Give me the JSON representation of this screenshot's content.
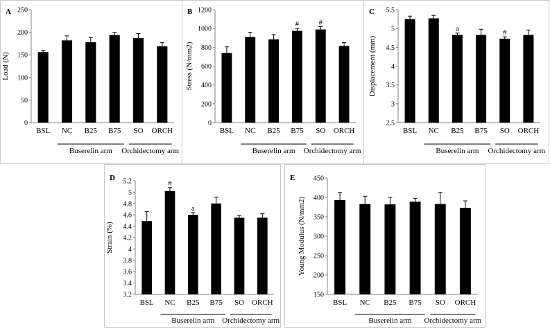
{
  "chart_data": [
    {
      "type": "bar",
      "panel_label": "A",
      "ylabel": "Load (N)",
      "ylim": [
        0,
        250
      ],
      "yticks": [
        "0",
        "50",
        "100",
        "150",
        "200",
        "250"
      ],
      "categories": [
        "BSL",
        "NC",
        "B25",
        "B75",
        "SO",
        "ORCH"
      ],
      "values": [
        156,
        182,
        178,
        194,
        187,
        169
      ],
      "errors": [
        4,
        10,
        10,
        6,
        10,
        8
      ],
      "annotations": [
        "",
        "",
        "",
        "",
        "",
        ""
      ],
      "groups": [
        {
          "label": "Buserelin arm",
          "from": 1,
          "to": 3
        },
        {
          "label": "Orchidectomy arm",
          "from": 4,
          "to": 5
        }
      ],
      "grid": false
    },
    {
      "type": "bar",
      "panel_label": "B",
      "ylabel": "Stress (N/mm2)",
      "ylim": [
        0,
        1200
      ],
      "yticks": [
        "0",
        "200",
        "400",
        "600",
        "800",
        "1000",
        "1200"
      ],
      "categories": [
        "BSL",
        "NC",
        "B25",
        "B75",
        "SO",
        "ORCH"
      ],
      "values": [
        740,
        910,
        885,
        975,
        990,
        815
      ],
      "errors": [
        65,
        50,
        50,
        25,
        30,
        35
      ],
      "annotations": [
        "",
        "",
        "",
        "#",
        "#",
        ""
      ],
      "groups": [
        {
          "label": "Buserelin arm",
          "from": 1,
          "to": 3
        },
        {
          "label": "Orchidectomy arm",
          "from": 4,
          "to": 5
        }
      ],
      "grid": false
    },
    {
      "type": "bar",
      "panel_label": "C",
      "ylabel": "Displacement (mm)",
      "ylim": [
        2.5,
        5.5
      ],
      "yticks": [
        "2.5",
        "3",
        "3.5",
        "4",
        "4.5",
        "5",
        "5.5"
      ],
      "categories": [
        "BSL",
        "NC",
        "B25",
        "B75",
        "SO",
        "ORCH"
      ],
      "values": [
        5.25,
        5.27,
        4.83,
        4.83,
        4.73,
        4.83
      ],
      "errors": [
        0.08,
        0.08,
        0.05,
        0.15,
        0.05,
        0.13
      ],
      "annotations": [
        "",
        "",
        "a",
        "",
        "#",
        ""
      ],
      "groups": [
        {
          "label": "Buserelin arm",
          "from": 1,
          "to": 3
        },
        {
          "label": "Orchidectomy arm",
          "from": 4,
          "to": 5
        }
      ],
      "grid": false
    },
    {
      "type": "bar",
      "panel_label": "D",
      "ylabel": "Strain (%)",
      "ylim": [
        3.2,
        5.2
      ],
      "yticks": [
        "3.2",
        "3.4",
        "3.6",
        "3.8",
        "4",
        "4.2",
        "4.4",
        "4.6",
        "4.8",
        "5",
        "5.2"
      ],
      "categories": [
        "BSL",
        "NC",
        "B25",
        "B75",
        "SO",
        "ORCH"
      ],
      "values": [
        4.49,
        5.02,
        4.6,
        4.8,
        4.55,
        4.55
      ],
      "errors": [
        0.17,
        0.06,
        0.04,
        0.11,
        0.04,
        0.07
      ],
      "annotations": [
        "",
        "#",
        "a",
        "",
        "",
        ""
      ],
      "groups": [
        {
          "label": "Buserelin arm",
          "from": 1,
          "to": 3
        },
        {
          "label": "Orchidectomy arm",
          "from": 4,
          "to": 5
        }
      ],
      "grid": false
    },
    {
      "type": "bar",
      "panel_label": "E",
      "ylabel": "Young Modulus (N/mm2)",
      "ylim": [
        150,
        450
      ],
      "yticks": [
        "150",
        "200",
        "250",
        "300",
        "350",
        "400",
        "450"
      ],
      "categories": [
        "BSL",
        "NC",
        "B25",
        "B75",
        "SO",
        "ORCH"
      ],
      "values": [
        393,
        383,
        382,
        389,
        383,
        373
      ],
      "errors": [
        20,
        20,
        18,
        8,
        30,
        18
      ],
      "annotations": [
        "",
        "",
        "",
        "",
        "",
        ""
      ],
      "groups": [
        {
          "label": "Buserelin arm",
          "from": 1,
          "to": 3
        },
        {
          "label": "Orchidectomy arm",
          "from": 4,
          "to": 5
        }
      ],
      "grid": false
    }
  ]
}
